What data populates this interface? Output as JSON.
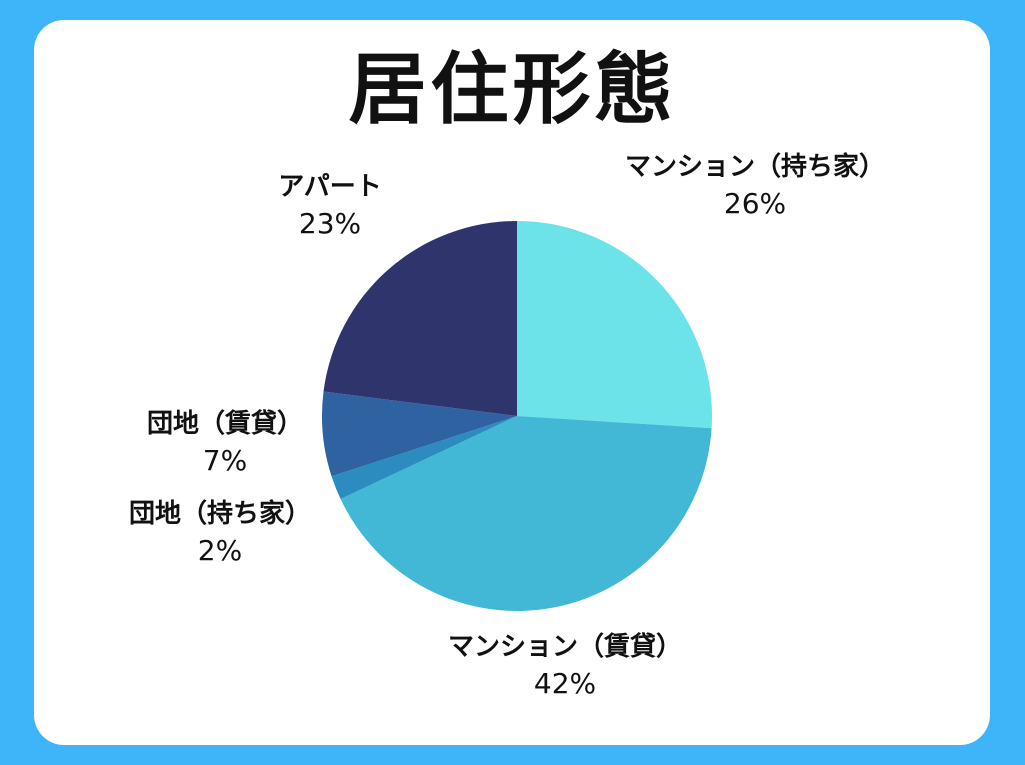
{
  "chart_data": {
    "type": "pie",
    "title": "居住形態",
    "slices": [
      {
        "label": "マンション（持ち家）",
        "value": 26,
        "value_label": "26%",
        "color": "#6be3e9"
      },
      {
        "label": "マンション（賃貸）",
        "value": 42,
        "value_label": "42%",
        "color": "#42b8d6"
      },
      {
        "label": "団地（持ち家）",
        "value": 2,
        "value_label": "2%",
        "color": "#2c8cbf"
      },
      {
        "label": "団地（賃貸）",
        "value": 7,
        "value_label": "7%",
        "color": "#2e62a0"
      },
      {
        "label": "アパート",
        "value": 23,
        "value_label": "23%",
        "color": "#30346d"
      }
    ],
    "start_angle_deg": 0,
    "direction": "clockwise"
  }
}
